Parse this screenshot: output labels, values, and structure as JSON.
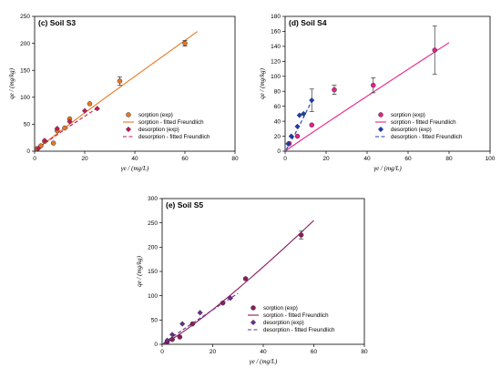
{
  "chart_data": [
    {
      "type": "scatter",
      "title": "(c) Soil S3",
      "xlabel": "γe / (mg/L)",
      "ylabel": "qe / (mg/kg)",
      "xlim": [
        0,
        80
      ],
      "ylim": [
        0,
        250
      ],
      "xticks": [
        0,
        20,
        40,
        60,
        80
      ],
      "yticks": [
        0,
        50,
        100,
        150,
        200,
        250
      ],
      "colors": {
        "sorption": "#e87722",
        "desorption": "#c2185b"
      },
      "legend_position": "bottom-right",
      "legend": [
        "sorption (exp)",
        "sorption - fitted Freundlich",
        "desorption (exp)",
        "desorption - fitted Freundlich"
      ],
      "sorption_points": [
        {
          "x": 1,
          "y": 5
        },
        {
          "x": 2.5,
          "y": 10
        },
        {
          "x": 4,
          "y": 18
        },
        {
          "x": 7.5,
          "y": 15
        },
        {
          "x": 9,
          "y": 38
        },
        {
          "x": 12,
          "y": 43
        },
        {
          "x": 14,
          "y": 60
        },
        {
          "x": 22,
          "y": 88
        },
        {
          "x": 34,
          "y": 130,
          "err": 8
        },
        {
          "x": 60,
          "y": 200,
          "err": 5
        }
      ],
      "sorption_fit": {
        "x": [
          0.5,
          65
        ],
        "y": [
          2,
          222
        ]
      },
      "desorption_points": [
        {
          "x": 1.5,
          "y": 5
        },
        {
          "x": 4,
          "y": 20
        },
        {
          "x": 9,
          "y": 42
        },
        {
          "x": 14,
          "y": 55
        },
        {
          "x": 20,
          "y": 75
        },
        {
          "x": 25,
          "y": 79
        }
      ],
      "desorption_fit": {
        "x": [
          0.5,
          25
        ],
        "y": [
          2,
          80
        ]
      }
    },
    {
      "type": "scatter",
      "title": "(d) Soil S4",
      "xlabel": "γe / (mg/L)",
      "ylabel": "qe / (mg/kg)",
      "xlim": [
        0,
        100
      ],
      "ylim": [
        0,
        180
      ],
      "xticks": [
        0,
        20,
        40,
        60,
        80,
        100
      ],
      "yticks": [
        0,
        20,
        40,
        60,
        80,
        100,
        120,
        140,
        160,
        180
      ],
      "colors": {
        "sorption": "#e91e8c",
        "desorption": "#1a3fb0"
      },
      "legend_position": "bottom-right",
      "legend": [
        "sorption (exp)",
        "sorption - fitted Freundlich",
        "desorption (exp)",
        "desorption - fitted Freundlich"
      ],
      "sorption_points": [
        {
          "x": 2,
          "y": 10
        },
        {
          "x": 6,
          "y": 20
        },
        {
          "x": 13,
          "y": 35
        },
        {
          "x": 24,
          "y": 82,
          "err": 6
        },
        {
          "x": 43,
          "y": 88,
          "err": 10
        },
        {
          "x": 73,
          "y": 135,
          "err": 32
        }
      ],
      "sorption_fit": {
        "x": [
          0.5,
          80
        ],
        "y": [
          1,
          145
        ]
      },
      "desorption_points": [
        {
          "x": 1.5,
          "y": 10
        },
        {
          "x": 3,
          "y": 20
        },
        {
          "x": 6,
          "y": 33
        },
        {
          "x": 7,
          "y": 48
        },
        {
          "x": 9,
          "y": 50
        },
        {
          "x": 13,
          "y": 68,
          "err": 15
        }
      ],
      "desorption_fit": {
        "x": [
          0.5,
          13.5
        ],
        "y": [
          2,
          70
        ]
      }
    },
    {
      "type": "scatter",
      "title": "(e) Soil S5",
      "xlabel": "γe / (mg/L)",
      "ylabel": "qe / (mg/kg)",
      "xlim": [
        0,
        80
      ],
      "ylim": [
        0,
        300
      ],
      "xticks": [
        0,
        20,
        40,
        60,
        80
      ],
      "yticks": [
        0,
        50,
        100,
        150,
        200,
        250,
        300
      ],
      "colors": {
        "sorption": "#8e1b5e",
        "desorption": "#6b2c91"
      },
      "legend_position": "bottom-right",
      "legend": [
        "sorption (exp)",
        "sorption - fitted Freundlich",
        "desorption (exp)",
        "desorption - fitted Freundlich"
      ],
      "sorption_points": [
        {
          "x": 2,
          "y": 5
        },
        {
          "x": 4,
          "y": 10
        },
        {
          "x": 7,
          "y": 15
        },
        {
          "x": 12,
          "y": 42
        },
        {
          "x": 24,
          "y": 85
        },
        {
          "x": 33,
          "y": 135
        },
        {
          "x": 55,
          "y": 225,
          "err": 8
        }
      ],
      "sorption_fit": {
        "x": [
          0.5,
          60
        ],
        "y": [
          1,
          255
        ]
      },
      "desorption_points": [
        {
          "x": 2,
          "y": 8
        },
        {
          "x": 4,
          "y": 20
        },
        {
          "x": 8,
          "y": 42
        },
        {
          "x": 15,
          "y": 65
        },
        {
          "x": 27,
          "y": 95
        }
      ],
      "desorption_fit": {
        "x": [
          0.5,
          30
        ],
        "y": [
          2,
          105
        ]
      }
    }
  ]
}
